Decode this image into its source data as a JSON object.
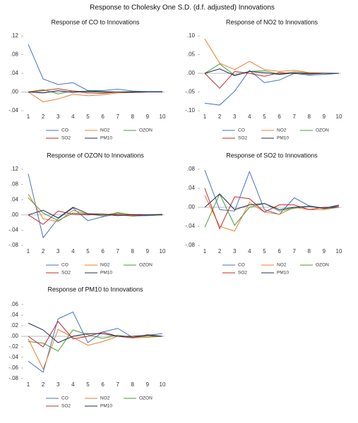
{
  "title": "Response to Cholesky One S.D. (d.f. adjusted) Innovations",
  "chart_data": [
    {
      "type": "line",
      "title": "Response of CO to Innovations",
      "categories": [
        1,
        2,
        3,
        4,
        5,
        6,
        7,
        8,
        9,
        10
      ],
      "ylim": [
        -0.04,
        0.12
      ],
      "yticks": [
        {
          "value": -0.04,
          "label": "-.04"
        },
        {
          "value": 0,
          "label": ".00"
        },
        {
          "value": 0.04,
          "label": ".04"
        },
        {
          "value": 0.08,
          "label": ".08"
        },
        {
          "value": 0.12,
          "label": ".12"
        }
      ],
      "series": [
        {
          "name": "CO",
          "color": "#4472c4",
          "values": [
            0.102,
            0.028,
            0.016,
            0.02,
            0.003,
            0.003,
            0.006,
            0.002,
            0.001,
            0.001
          ]
        },
        {
          "name": "NO2",
          "color": "#ed7d31",
          "values": [
            0,
            -0.021,
            -0.015,
            -0.005,
            -0.008,
            -0.006,
            -0.002,
            -0.001,
            0,
            0
          ]
        },
        {
          "name": "OZON",
          "color": "#4e9a3a",
          "values": [
            0,
            0.005,
            -0.004,
            0.002,
            0.001,
            -0.001,
            0,
            0.001,
            0,
            0
          ]
        },
        {
          "name": "SO2",
          "color": "#c0282c",
          "values": [
            0,
            0.003,
            0.007,
            0.002,
            -0.002,
            -0.003,
            0,
            -0.001,
            0,
            0
          ]
        },
        {
          "name": "PM10",
          "color": "#1f2f4f",
          "values": [
            0,
            -0.002,
            0.003,
            -0.001,
            0.002,
            0.001,
            0,
            0,
            0,
            0
          ]
        }
      ]
    },
    {
      "type": "line",
      "title": "Response of NO2 to Innovations",
      "categories": [
        1,
        2,
        3,
        4,
        5,
        6,
        7,
        8,
        9,
        10
      ],
      "ylim": [
        -0.1,
        0.1
      ],
      "yticks": [
        {
          "value": -0.1,
          "label": "-.10"
        },
        {
          "value": -0.05,
          "label": "-.05"
        },
        {
          "value": 0,
          "label": ".00"
        },
        {
          "value": 0.05,
          "label": ".05"
        },
        {
          "value": 0.1,
          "label": ".10"
        }
      ],
      "series": [
        {
          "name": "CO",
          "color": "#4472c4",
          "values": [
            -0.08,
            -0.085,
            -0.048,
            0.008,
            -0.025,
            -0.018,
            0,
            -0.005,
            -0.003,
            0
          ]
        },
        {
          "name": "NO2",
          "color": "#ed7d31",
          "values": [
            0.092,
            0.027,
            0.01,
            0.032,
            0.01,
            0.005,
            0.008,
            0.002,
            0.001,
            0
          ]
        },
        {
          "name": "OZON",
          "color": "#4e9a3a",
          "values": [
            0,
            0.025,
            -0.005,
            0.005,
            0.007,
            -0.002,
            0.004,
            0.001,
            0,
            0
          ]
        },
        {
          "name": "SO2",
          "color": "#c0282c",
          "values": [
            0,
            -0.04,
            0.005,
            0,
            -0.008,
            0.002,
            -0.001,
            0,
            0,
            0
          ]
        },
        {
          "name": "PM10",
          "color": "#1f2f4f",
          "values": [
            0,
            0.012,
            -0.006,
            0.005,
            0.002,
            -0.003,
            0.001,
            -0.002,
            0,
            0
          ]
        }
      ]
    },
    {
      "type": "line",
      "title": "Response of OZON to Innovations",
      "categories": [
        1,
        2,
        3,
        4,
        5,
        6,
        7,
        8,
        9,
        10
      ],
      "ylim": [
        -0.08,
        0.12
      ],
      "yticks": [
        {
          "value": -0.08,
          "label": "-.08"
        },
        {
          "value": -0.04,
          "label": "-.04"
        },
        {
          "value": 0,
          "label": ".00"
        },
        {
          "value": 0.04,
          "label": ".04"
        },
        {
          "value": 0.08,
          "label": ".08"
        },
        {
          "value": 0.12,
          "label": ".12"
        }
      ],
      "series": [
        {
          "name": "CO",
          "color": "#4472c4",
          "values": [
            0.108,
            -0.06,
            -0.01,
            0.018,
            -0.015,
            -0.005,
            0.003,
            -0.003,
            -0.002,
            0
          ]
        },
        {
          "name": "NO2",
          "color": "#ed7d31",
          "values": [
            0.055,
            -0.01,
            -0.018,
            0.012,
            0.002,
            -0.003,
            0.004,
            -0.002,
            0,
            0
          ]
        },
        {
          "name": "OZON",
          "color": "#4e9a3a",
          "values": [
            0.045,
            0.005,
            -0.015,
            0.005,
            0.002,
            -0.002,
            0.006,
            0,
            0,
            0.002
          ]
        },
        {
          "name": "SO2",
          "color": "#c0282c",
          "values": [
            0,
            -0.025,
            0.01,
            0.002,
            0,
            0.002,
            0,
            -0.003,
            0,
            0
          ]
        },
        {
          "name": "PM10",
          "color": "#1f2f4f",
          "values": [
            0,
            0.012,
            -0.008,
            0.02,
            0.003,
            0.002,
            -0.002,
            0.001,
            0,
            0
          ]
        }
      ]
    },
    {
      "type": "line",
      "title": "Response of SO2 to Innovations",
      "categories": [
        1,
        2,
        3,
        4,
        5,
        6,
        7,
        8,
        9,
        10
      ],
      "ylim": [
        -0.08,
        0.08
      ],
      "yticks": [
        {
          "value": -0.08,
          "label": "-.08"
        },
        {
          "value": -0.04,
          "label": "-.04"
        },
        {
          "value": 0,
          "label": ".00"
        },
        {
          "value": 0.04,
          "label": ".04"
        },
        {
          "value": 0.08,
          "label": ".08"
        }
      ],
      "series": [
        {
          "name": "CO",
          "color": "#4472c4",
          "values": [
            0.078,
            -0.005,
            -0.008,
            0.075,
            -0.005,
            -0.015,
            0.02,
            0.003,
            -0.002,
            0.005
          ]
        },
        {
          "name": "NO2",
          "color": "#ed7d31",
          "values": [
            0.025,
            -0.04,
            -0.05,
            0.01,
            -0.01,
            -0.015,
            0,
            -0.005,
            -0.005,
            0
          ]
        },
        {
          "name": "OZON",
          "color": "#4e9a3a",
          "values": [
            -0.042,
            0.028,
            -0.038,
            0,
            0.008,
            -0.008,
            -0.002,
            0.002,
            -0.003,
            0
          ]
        },
        {
          "name": "SO2",
          "color": "#c0282c",
          "values": [
            0.04,
            -0.045,
            0.022,
            0.018,
            -0.01,
            0.005,
            0.005,
            -0.005,
            0,
            0
          ]
        },
        {
          "name": "PM10",
          "color": "#1f2f4f",
          "values": [
            0,
            0.028,
            -0.005,
            0.005,
            0.008,
            -0.005,
            0,
            0.002,
            -0.002,
            0.003
          ]
        }
      ]
    },
    {
      "type": "line",
      "title": "Response of PM10 to Innovations",
      "categories": [
        1,
        2,
        3,
        4,
        5,
        6,
        7,
        8,
        9,
        10
      ],
      "ylim": [
        -0.08,
        0.06
      ],
      "yticks": [
        {
          "value": -0.08,
          "label": "-.08"
        },
        {
          "value": -0.06,
          "label": "-.06"
        },
        {
          "value": -0.04,
          "label": "-.04"
        },
        {
          "value": -0.02,
          "label": "-.02"
        },
        {
          "value": 0,
          "label": ".00"
        },
        {
          "value": 0.02,
          "label": ".02"
        },
        {
          "value": 0.04,
          "label": ".04"
        },
        {
          "value": 0.06,
          "label": ".06"
        }
      ],
      "series": [
        {
          "name": "CO",
          "color": "#4472c4",
          "values": [
            -0.047,
            -0.068,
            0.033,
            0.046,
            -0.012,
            0.008,
            0.015,
            -0.002,
            0.002,
            0.005
          ]
        },
        {
          "name": "NO2",
          "color": "#ed7d31",
          "values": [
            -0.005,
            -0.062,
            0.013,
            -0.002,
            -0.017,
            -0.01,
            0,
            -0.003,
            -0.002,
            0
          ]
        },
        {
          "name": "OZON",
          "color": "#4e9a3a",
          "values": [
            -0.01,
            -0.013,
            -0.028,
            0.012,
            0.003,
            -0.004,
            0.002,
            -0.002,
            0,
            0
          ]
        },
        {
          "name": "SO2",
          "color": "#c0282c",
          "values": [
            0,
            -0.02,
            0.028,
            -0.005,
            0,
            0.008,
            0,
            -0.003,
            0.003,
            0
          ]
        },
        {
          "name": "PM10",
          "color": "#1f2f4f",
          "values": [
            0.025,
            0.012,
            -0.012,
            0,
            0.005,
            0.005,
            0,
            0,
            0.002,
            0
          ]
        }
      ]
    }
  ]
}
